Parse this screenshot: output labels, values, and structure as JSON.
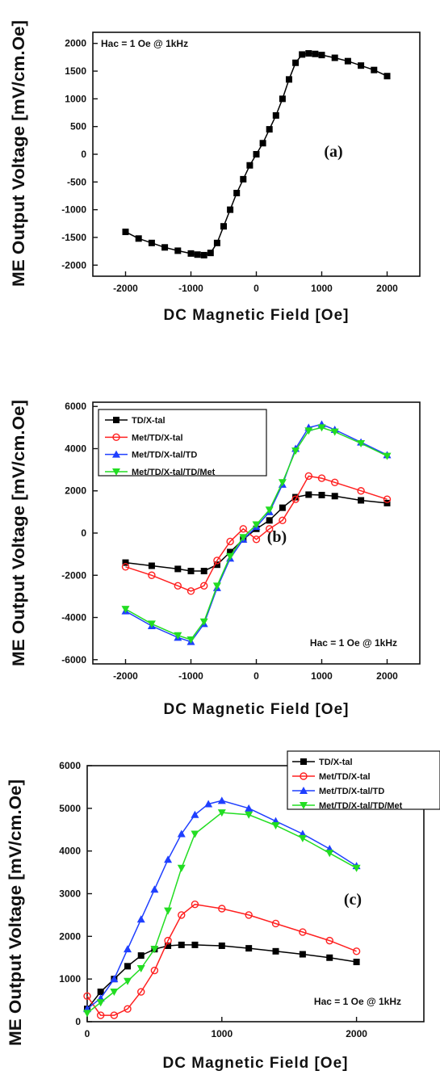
{
  "colors": {
    "s1": "#000000",
    "s2": "#ff2020",
    "s3": "#1f3fff",
    "s4": "#22dd22"
  },
  "chart_data": [
    {
      "type": "scatter",
      "panel_label": "(a)",
      "annotation": "Hac = 1 Oe @ 1kHz",
      "xlabel": "DC Magnetic Field [Oe]",
      "ylabel": "ME Output Voltage [mV/cm.Oe]",
      "xlim": [
        -2500,
        2500
      ],
      "ylim": [
        -2200,
        2200
      ],
      "xticks": [
        "-2000",
        "-1000",
        "0",
        "1000",
        "2000"
      ],
      "xtick_values": [
        -2000,
        -1000,
        0,
        1000,
        2000
      ],
      "yticks": [
        "-2000",
        "-1500",
        "-1000",
        "-500",
        "0",
        "500",
        "1000",
        "1500",
        "2000"
      ],
      "ytick_values": [
        -2000,
        -1500,
        -1000,
        -500,
        0,
        500,
        1000,
        1500,
        2000
      ],
      "legend": null,
      "series": [
        {
          "color_key": "s1",
          "marker": "square",
          "x": [
            -2000,
            -1800,
            -1600,
            -1400,
            -1200,
            -1000,
            -900,
            -800,
            -700,
            -600,
            -500,
            -400,
            -300,
            -200,
            -100,
            0,
            100,
            200,
            300,
            400,
            500,
            600,
            700,
            800,
            900,
            1000,
            1200,
            1400,
            1600,
            1800,
            2000
          ],
          "y": [
            -1400,
            -1520,
            -1600,
            -1680,
            -1740,
            -1790,
            -1810,
            -1820,
            -1780,
            -1600,
            -1300,
            -1000,
            -700,
            -450,
            -200,
            0,
            200,
            450,
            700,
            1000,
            1350,
            1650,
            1800,
            1820,
            1810,
            1790,
            1740,
            1680,
            1600,
            1520,
            1410
          ]
        }
      ]
    },
    {
      "type": "line",
      "panel_label": "(b)",
      "annotation": "Hac = 1 Oe @ 1kHz",
      "xlabel": "DC  Magnetic  Field [Oe]",
      "ylabel": "ME Output Voltage [mV/cm.Oe]",
      "xlim": [
        -2500,
        2500
      ],
      "ylim": [
        -6200,
        6200
      ],
      "xticks": [
        "-2000",
        "-1000",
        "0",
        "1000",
        "2000"
      ],
      "xtick_values": [
        -2000,
        -1000,
        0,
        1000,
        2000
      ],
      "yticks": [
        "-6000",
        "-4000",
        "-2000",
        "0",
        "2000",
        "4000",
        "6000"
      ],
      "ytick_values": [
        -6000,
        -4000,
        -2000,
        0,
        2000,
        4000,
        6000
      ],
      "legend": {
        "position": "top-left"
      },
      "series": [
        {
          "name": "TD/X-tal",
          "color_key": "s1",
          "marker": "square",
          "x": [
            -2000,
            -1600,
            -1200,
            -1000,
            -800,
            -600,
            -400,
            -200,
            0,
            200,
            400,
            600,
            800,
            1000,
            1200,
            1600,
            2000
          ],
          "y": [
            -1400,
            -1550,
            -1700,
            -1800,
            -1800,
            -1500,
            -900,
            -300,
            200,
            600,
            1200,
            1700,
            1820,
            1800,
            1750,
            1550,
            1420
          ]
        },
        {
          "name": "Met/TD/X-tal",
          "color_key": "s2",
          "marker": "circle-open",
          "x": [
            -2000,
            -1600,
            -1200,
            -1000,
            -800,
            -600,
            -400,
            -200,
            0,
            200,
            400,
            600,
            800,
            1000,
            1200,
            1600,
            2000
          ],
          "y": [
            -1600,
            -2000,
            -2500,
            -2750,
            -2500,
            -1300,
            -400,
            200,
            -300,
            200,
            600,
            1600,
            2700,
            2600,
            2400,
            2000,
            1600
          ]
        },
        {
          "name": "Met/TD/X-tal/TD",
          "color_key": "s3",
          "marker": "triangle-up",
          "x": [
            -2000,
            -1600,
            -1200,
            -1000,
            -800,
            -600,
            -400,
            -200,
            0,
            200,
            400,
            600,
            800,
            1000,
            1200,
            1600,
            2000
          ],
          "y": [
            -3700,
            -4400,
            -4950,
            -5150,
            -4300,
            -2600,
            -1200,
            -300,
            300,
            1000,
            2300,
            4000,
            5000,
            5150,
            4900,
            4300,
            3700
          ]
        },
        {
          "name": "Met/TD/X-tal/TD/Met",
          "color_key": "s4",
          "marker": "triangle-down",
          "x": [
            -2000,
            -1600,
            -1200,
            -1000,
            -800,
            -600,
            -400,
            -200,
            0,
            200,
            400,
            600,
            800,
            1000,
            1200,
            1600,
            2000
          ],
          "y": [
            -3600,
            -4300,
            -4850,
            -5050,
            -4200,
            -2500,
            -1100,
            -200,
            400,
            1100,
            2400,
            3900,
            4850,
            5000,
            4800,
            4250,
            3650
          ]
        }
      ]
    },
    {
      "type": "line",
      "panel_label": "(c)",
      "annotation": "Hac = 1 Oe @ 1kHz",
      "xlabel": "DC Magnetic Field [Oe]",
      "ylabel": "ME Output Voltage [mV/cm.Oe]",
      "xlim": [
        0,
        2500
      ],
      "ylim": [
        0,
        6000
      ],
      "xticks": [
        "0",
        "1000",
        "2000"
      ],
      "xtick_values": [
        0,
        1000,
        2000
      ],
      "yticks": [
        "0",
        "1000",
        "2000",
        "3000",
        "4000",
        "5000",
        "6000"
      ],
      "ytick_values": [
        0,
        1000,
        2000,
        3000,
        4000,
        5000,
        6000
      ],
      "legend": {
        "position": "top-right"
      },
      "series": [
        {
          "name": "TD/X-tal",
          "color_key": "s1",
          "marker": "square",
          "x": [
            0,
            100,
            200,
            300,
            400,
            500,
            600,
            700,
            800,
            1000,
            1200,
            1400,
            1600,
            1800,
            2000
          ],
          "y": [
            300,
            700,
            1000,
            1300,
            1550,
            1700,
            1780,
            1800,
            1800,
            1780,
            1720,
            1650,
            1580,
            1500,
            1400
          ]
        },
        {
          "name": "Met/TD/X-tal",
          "color_key": "s2",
          "marker": "circle-open",
          "x": [
            0,
            100,
            200,
            300,
            400,
            500,
            600,
            700,
            800,
            1000,
            1200,
            1400,
            1600,
            1800,
            2000
          ],
          "y": [
            600,
            150,
            150,
            300,
            700,
            1200,
            1900,
            2500,
            2750,
            2650,
            2500,
            2300,
            2100,
            1900,
            1650
          ]
        },
        {
          "name": "Met/TD/X-tal/TD",
          "color_key": "s3",
          "marker": "triangle-up",
          "x": [
            0,
            100,
            200,
            300,
            400,
            500,
            600,
            700,
            800,
            900,
            1000,
            1200,
            1400,
            1600,
            1800,
            2000
          ],
          "y": [
            300,
            550,
            1000,
            1700,
            2400,
            3100,
            3800,
            4400,
            4850,
            5100,
            5180,
            5000,
            4700,
            4400,
            4050,
            3650
          ]
        },
        {
          "name": "Met/TD/X-tal/TD/Met",
          "color_key": "s4",
          "marker": "triangle-down",
          "x": [
            0,
            100,
            200,
            300,
            400,
            500,
            600,
            700,
            800,
            1000,
            1200,
            1400,
            1600,
            1800,
            2000
          ],
          "y": [
            200,
            450,
            700,
            950,
            1250,
            1700,
            2600,
            3600,
            4400,
            4900,
            4850,
            4600,
            4300,
            3950,
            3600
          ]
        }
      ]
    }
  ]
}
